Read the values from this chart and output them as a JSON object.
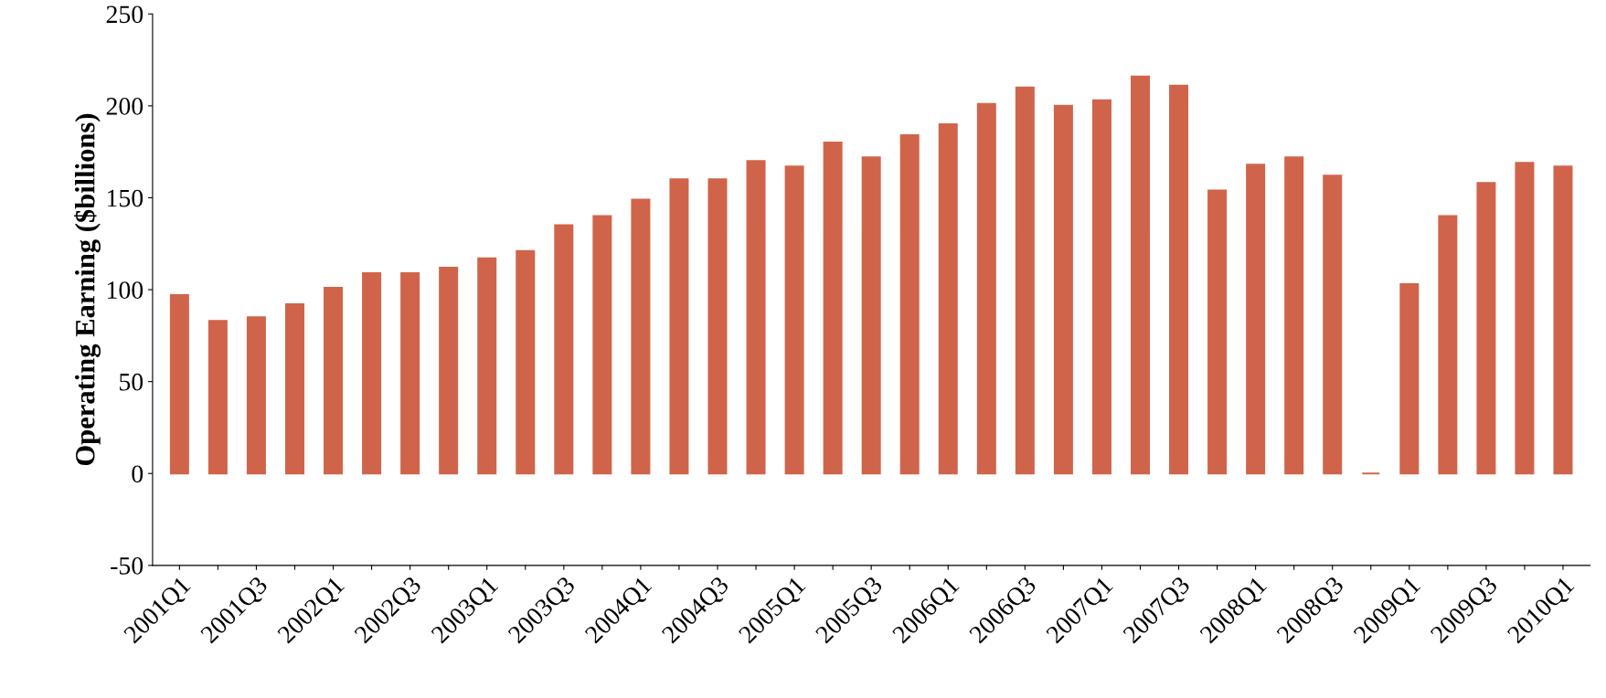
{
  "chart_data": {
    "type": "bar",
    "ylabel": "Operating Earning ($billions)",
    "categories": [
      "2001Q1",
      null,
      "2001Q3",
      null,
      "2002Q1",
      null,
      "2002Q3",
      null,
      "2003Q1",
      null,
      "2003Q3",
      null,
      "2004Q1",
      null,
      "2004Q3",
      null,
      "2005Q1",
      null,
      "2005Q3",
      null,
      "2006Q1",
      null,
      "2006Q3",
      null,
      "2007Q1",
      null,
      "2007Q3",
      null,
      "2008Q1",
      null,
      "2008Q3",
      null,
      "2009Q1",
      null,
      "2009Q3",
      null,
      "2010Q1"
    ],
    "values": [
      97,
      83,
      85,
      92,
      101,
      109,
      109,
      112,
      117,
      121,
      135,
      140,
      149,
      160,
      160,
      170,
      167,
      180,
      172,
      184,
      190,
      201,
      210,
      200,
      203,
      216,
      211,
      154,
      168,
      172,
      162,
      0,
      103,
      140,
      158,
      169,
      167
    ],
    "color": "#d0644a",
    "ylim": [
      -50,
      250
    ],
    "yticks": [
      -50,
      0,
      50,
      100,
      150,
      200,
      250
    ],
    "grid": false
  }
}
